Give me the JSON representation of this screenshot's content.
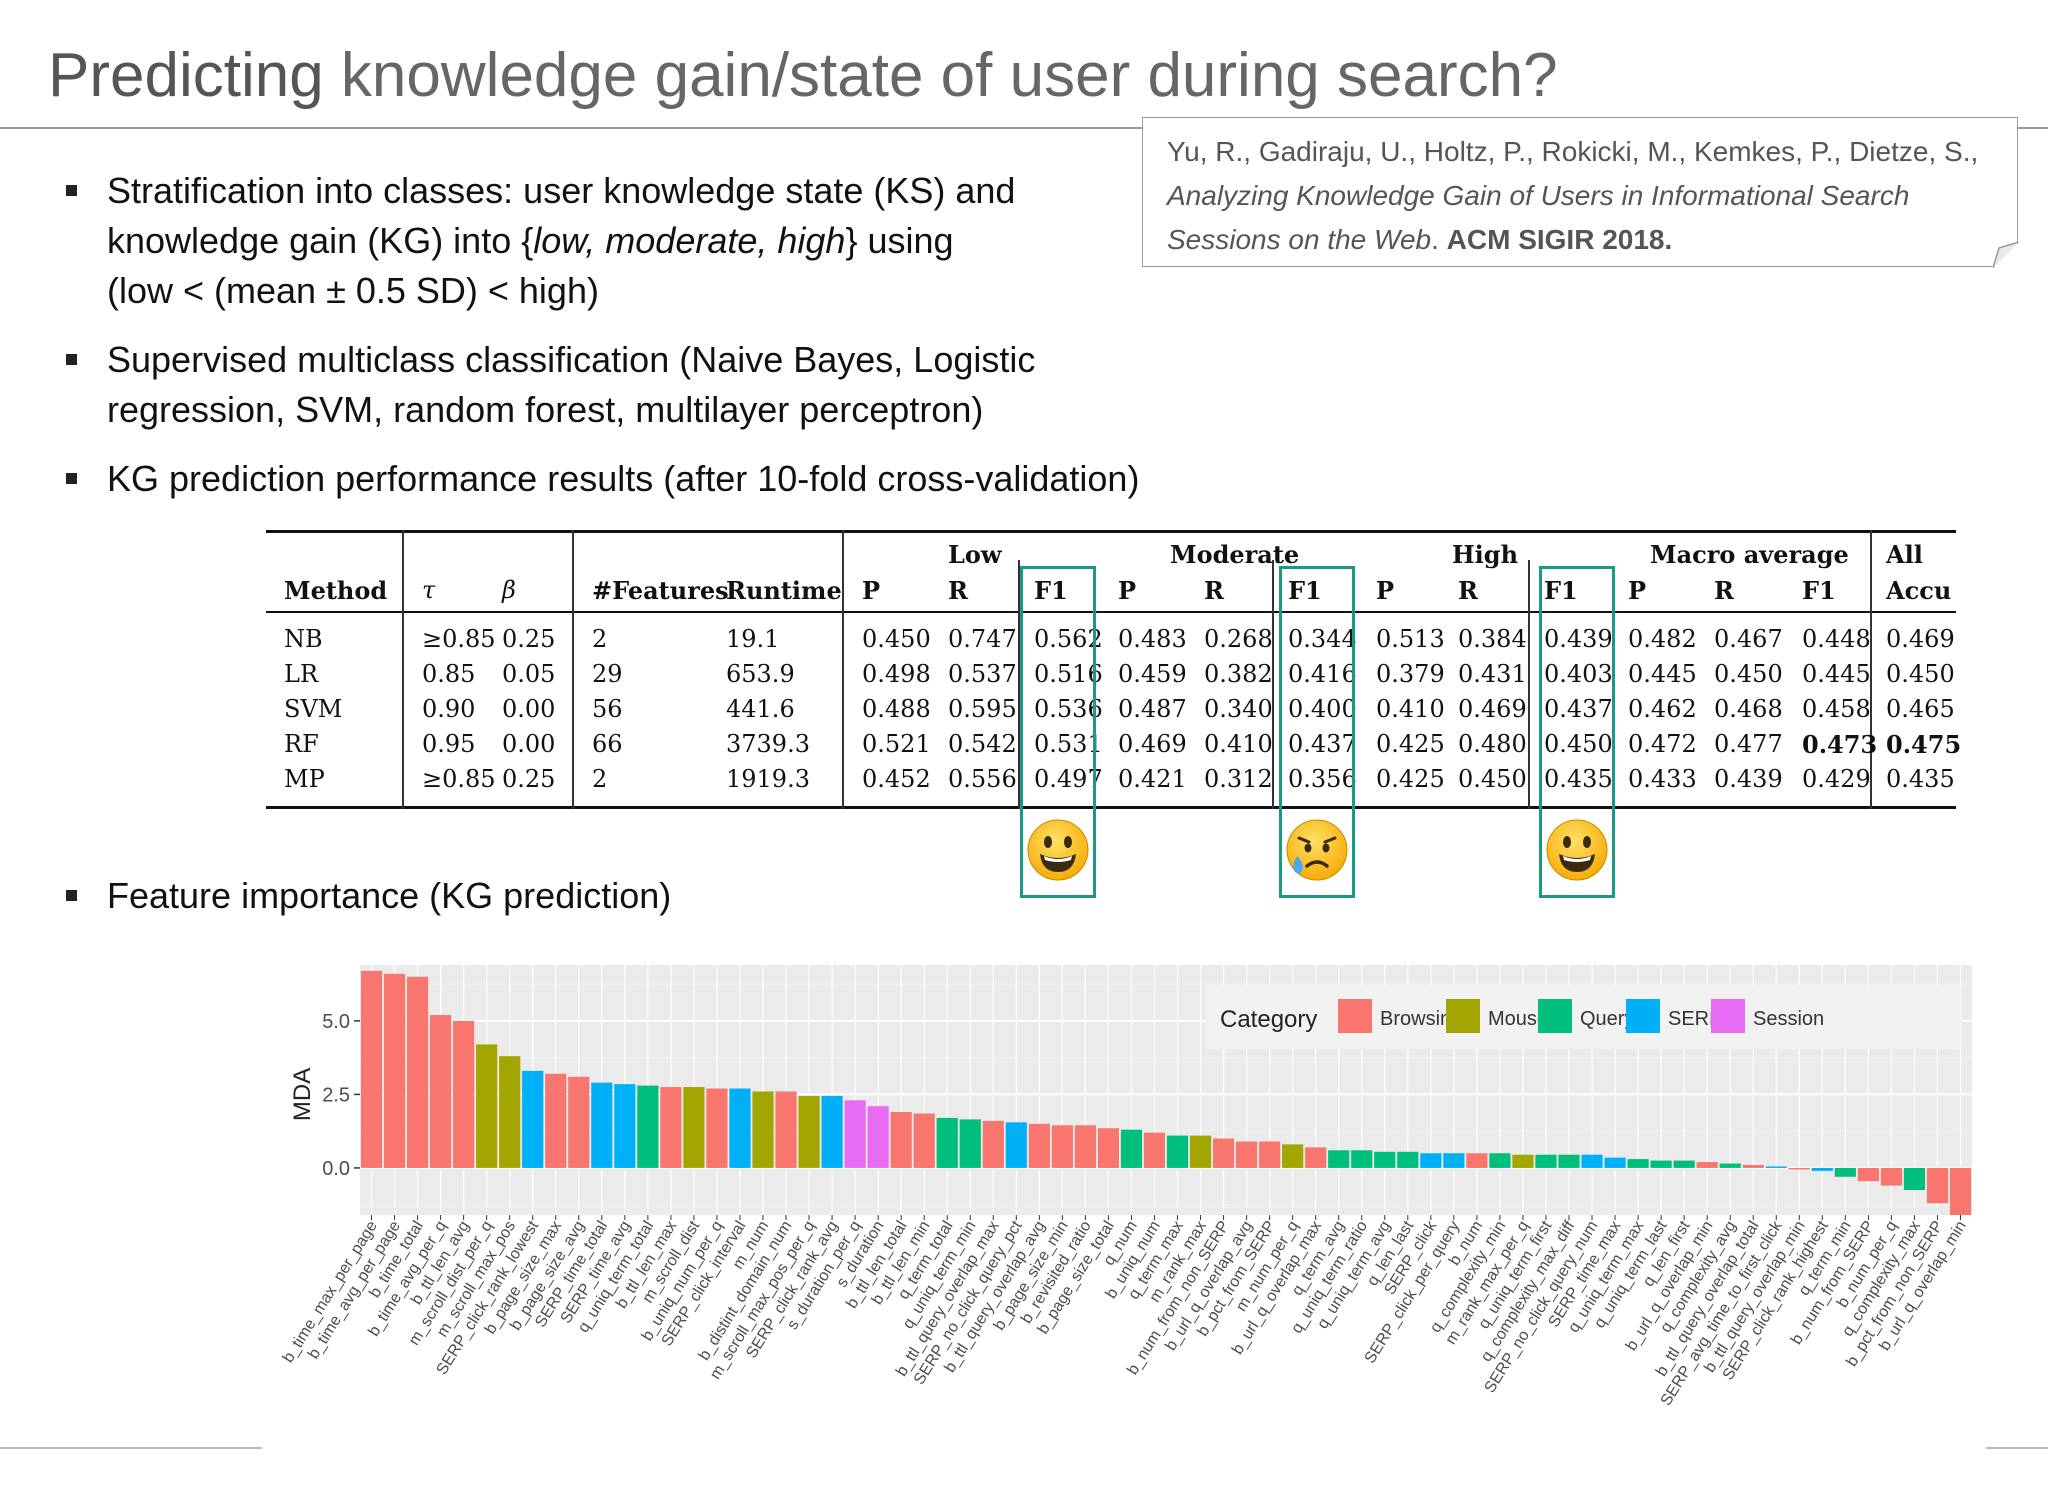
{
  "title": {
    "highlight": "Predicting",
    "rest": " knowledge gain/state of user during search?"
  },
  "citation": {
    "authors": "Yu, R., Gadiraju, U., Holtz, P., Rokicki, M., Kemkes, P., Dietze, S.,",
    "paper_title_line1": "Analyzing Knowledge Gain of Users in Informational Search",
    "paper_title_line2": "Sessions on the Web",
    "venue_sep": ". ",
    "venue": "ACM SIGIR 2018."
  },
  "bullets": {
    "b1_l1": "Stratification into classes: user knowledge state (KS) and",
    "b1_l2_pre": "knowledge gain (KG) into {",
    "b1_l2_it": "low, moderate, high",
    "b1_l2_post": "} using",
    "b1_l3": "(low < (mean ± 0.5 SD) < high)",
    "b2_l1": "Supervised multiclass classification (Naive Bayes, Logistic",
    "b2_l2": "regression, SVM, random forest, multilayer perceptron)",
    "b3": "KG prediction performance results (after 10-fold cross-validation)",
    "b4": "Feature importance (KG prediction)"
  },
  "table": {
    "group_headers": {
      "low": "Low",
      "moderate": "Moderate",
      "high": "High",
      "macro": "Macro average",
      "all": "All"
    },
    "headers": [
      "Method",
      "τ",
      "β",
      "#Features",
      "Runtime",
      "P",
      "R",
      "F1",
      "P",
      "R",
      "F1",
      "P",
      "R",
      "F1",
      "P",
      "R",
      "F1",
      "Accu"
    ],
    "rows": [
      [
        "NB",
        "≥0.85",
        "0.25",
        "2",
        "19.1",
        "0.450",
        "0.747",
        "0.562",
        "0.483",
        "0.268",
        "0.344",
        "0.513",
        "0.384",
        "0.439",
        "0.482",
        "0.467",
        "0.448",
        "0.469"
      ],
      [
        "LR",
        "0.85",
        "0.05",
        "29",
        "653.9",
        "0.498",
        "0.537",
        "0.516",
        "0.459",
        "0.382",
        "0.416",
        "0.379",
        "0.431",
        "0.403",
        "0.445",
        "0.450",
        "0.445",
        "0.450"
      ],
      [
        "SVM",
        "0.90",
        "0.00",
        "56",
        "441.6",
        "0.488",
        "0.595",
        "0.536",
        "0.487",
        "0.340",
        "0.400",
        "0.410",
        "0.469",
        "0.437",
        "0.462",
        "0.468",
        "0.458",
        "0.465"
      ],
      [
        "RF",
        "0.95",
        "0.00",
        "66",
        "3739.3",
        "0.521",
        "0.542",
        "0.531",
        "0.469",
        "0.410",
        "0.437",
        "0.425",
        "0.480",
        "0.450",
        "0.472",
        "0.477",
        "0.473",
        "0.475"
      ],
      [
        "MP",
        "≥0.85",
        "0.25",
        "2",
        "1919.3",
        "0.452",
        "0.556",
        "0.497",
        "0.421",
        "0.312",
        "0.356",
        "0.425",
        "0.450",
        "0.435",
        "0.433",
        "0.439",
        "0.429",
        "0.435"
      ]
    ],
    "bold_cells": [
      [
        3,
        16
      ],
      [
        3,
        17
      ]
    ],
    "emojis": [
      "smiley",
      "sad-sweat",
      "smiley"
    ]
  },
  "chart_data": {
    "type": "bar",
    "ylabel": "MDA",
    "yticks": [
      0.0,
      2.5,
      5.0
    ],
    "ytick_labels": [
      "0.0",
      "2.5",
      "5.0"
    ],
    "ylim": [
      -1.6,
      6.9
    ],
    "legend": {
      "title": "Category",
      "placement": "top-right",
      "entries": [
        {
          "name": "Browsing",
          "color": "#F8766D"
        },
        {
          "name": "Mouse",
          "color": "#A3A500"
        },
        {
          "name": "Query",
          "color": "#00BF7D"
        },
        {
          "name": "SERP",
          "color": "#00B0F6"
        },
        {
          "name": "Session",
          "color": "#E76BF3"
        }
      ]
    },
    "grid": true,
    "categories": [
      "b_time_max_per_page",
      "b_time_avg_per_page",
      "b_time_total",
      "b_time_avg_per_q",
      "b_ttl_len_avg",
      "m_scroll_dist_per_q",
      "m_scroll_max_pos",
      "SERP_click_rank_lowest",
      "b_page_size_max",
      "b_page_size_avg",
      "SERP_time_total",
      "SERP_time_avg",
      "q_uniq_term_total",
      "b_ttl_len_max",
      "m_scroll_dist",
      "b_uniq_num_per_q",
      "SERP_click_interval",
      "m_num",
      "b_distint_domain_num",
      "m_scroll_max_pos_per_q",
      "SERP_click_rank_avg",
      "s_duration_per_q",
      "s_duration",
      "b_ttl_len_total",
      "b_ttl_len_min",
      "q_term_total",
      "q_uniq_term_min",
      "b_ttl_query_overlap_max",
      "SERP_no_click_query_pct",
      "b_ttl_query_overlap_avg",
      "b_page_size_min",
      "b_revisited_ratio",
      "b_page_size_total",
      "q_num",
      "b_uniq_num",
      "q_term_max",
      "m_rank_max",
      "b_num_from_non_SERP",
      "b_url_q_overlap_avg",
      "b_pct_from_SERP",
      "m_num_per_q",
      "b_url_q_overlap_max",
      "q_term_avg",
      "q_uniq_term_ratio",
      "q_uniq_term_avg",
      "q_len_last",
      "SERP_click",
      "SERP_click_per_query",
      "b_num",
      "q_complexity_min",
      "m_rank_max_per_q",
      "q_uniq_term_first",
      "q_complexity_max_diff",
      "SERP_no_click_query_num",
      "SERP_time_max",
      "q_uniq_term_max",
      "q_uniq_term_last",
      "q_len_first",
      "b_url_q_overlap_min",
      "q_complexity_avg",
      "b_ttl_query_overlap_total",
      "SERP_avg_time_to_first_click",
      "b_ttl_query_overlap_min",
      "SERP_click_rank_highest",
      "q_term_min",
      "b_num_from_SERP",
      "b_num_per_q",
      "q_complexity_max",
      "b_pct_from_non_SERP",
      "b_url_q_overlap_min"
    ],
    "values": [
      6.7,
      6.6,
      6.5,
      5.2,
      5.0,
      4.2,
      3.8,
      3.3,
      3.2,
      3.1,
      2.9,
      2.85,
      2.8,
      2.75,
      2.75,
      2.7,
      2.7,
      2.6,
      2.6,
      2.45,
      2.45,
      2.3,
      2.1,
      1.9,
      1.85,
      1.7,
      1.65,
      1.6,
      1.55,
      1.5,
      1.45,
      1.45,
      1.35,
      1.3,
      1.2,
      1.1,
      1.1,
      1.0,
      0.9,
      0.9,
      0.8,
      0.7,
      0.6,
      0.6,
      0.55,
      0.55,
      0.5,
      0.5,
      0.5,
      0.5,
      0.45,
      0.45,
      0.45,
      0.45,
      0.35,
      0.3,
      0.25,
      0.25,
      0.2,
      0.15,
      0.1,
      0.05,
      -0.05,
      -0.1,
      -0.3,
      -0.45,
      -0.6,
      -0.75,
      -1.2,
      -1.6
    ],
    "series_category": [
      "Browsing",
      "Browsing",
      "Browsing",
      "Browsing",
      "Browsing",
      "Mouse",
      "Mouse",
      "SERP",
      "Browsing",
      "Browsing",
      "SERP",
      "SERP",
      "Query",
      "Browsing",
      "Mouse",
      "Browsing",
      "SERP",
      "Mouse",
      "Browsing",
      "Mouse",
      "SERP",
      "Session",
      "Session",
      "Browsing",
      "Browsing",
      "Query",
      "Query",
      "Browsing",
      "SERP",
      "Browsing",
      "Browsing",
      "Browsing",
      "Browsing",
      "Query",
      "Browsing",
      "Query",
      "Mouse",
      "Browsing",
      "Browsing",
      "Browsing",
      "Mouse",
      "Browsing",
      "Query",
      "Query",
      "Query",
      "Query",
      "SERP",
      "SERP",
      "Browsing",
      "Query",
      "Mouse",
      "Query",
      "Query",
      "SERP",
      "SERP",
      "Query",
      "Query",
      "Query",
      "Browsing",
      "Query",
      "Browsing",
      "SERP",
      "Browsing",
      "SERP",
      "Query",
      "Browsing",
      "Browsing",
      "Query",
      "Browsing",
      "Browsing"
    ]
  }
}
